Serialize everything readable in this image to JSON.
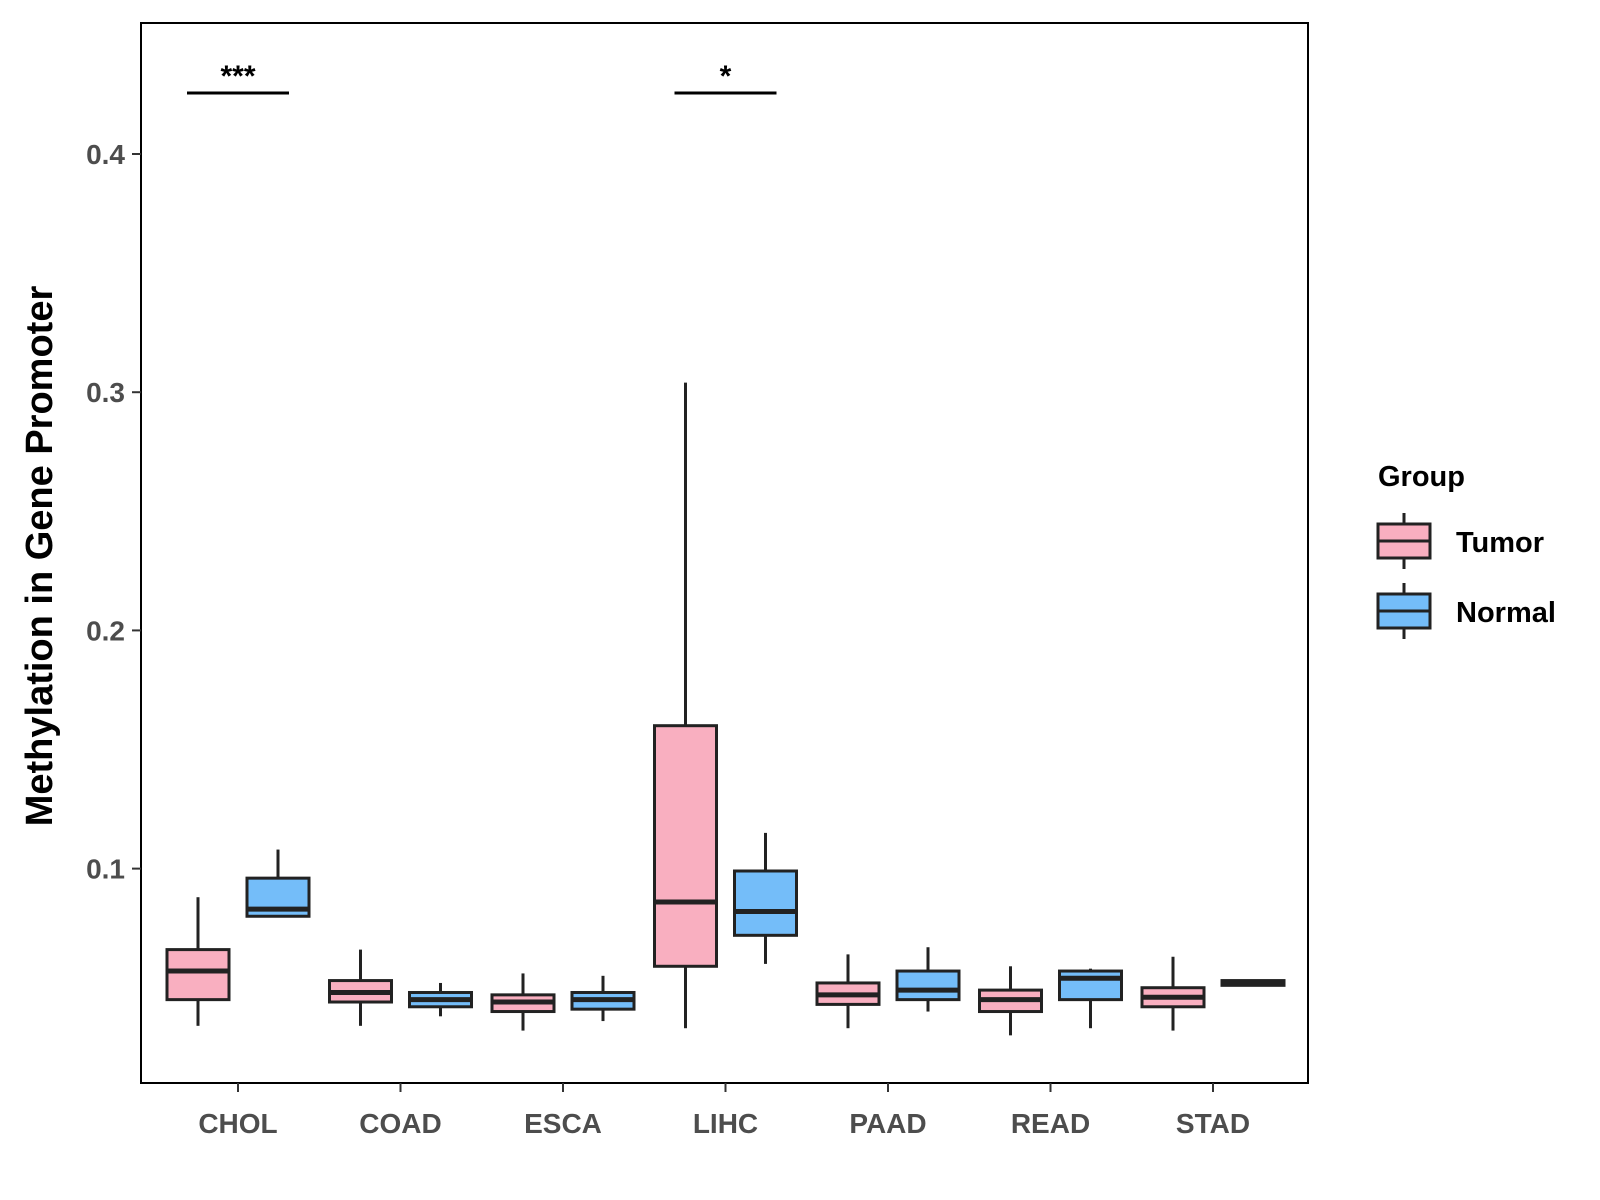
{
  "chart_data": {
    "type": "boxplot",
    "ylabel": "Methylation in Gene Promoter",
    "xlabel": "",
    "ylim": [
      0.01,
      0.455
    ],
    "yticks": [
      "0.1",
      "0.2",
      "0.3",
      "0.4"
    ],
    "ytick_values": [
      0.1,
      0.2,
      0.3,
      0.4
    ],
    "categories": [
      "CHOL",
      "COAD",
      "ESCA",
      "LIHC",
      "PAAD",
      "READ",
      "STAD"
    ],
    "legend": {
      "title": "Group",
      "entries": [
        {
          "name": "Tumor",
          "color": "#f9afc0"
        },
        {
          "name": "Normal",
          "color": "#74bdf9"
        }
      ]
    },
    "series": [
      {
        "name": "Tumor",
        "color": "#f9afc0",
        "boxes": [
          {
            "category": "CHOL",
            "min": 0.034,
            "q1": 0.045,
            "median": 0.057,
            "q3": 0.066,
            "max": 0.088
          },
          {
            "category": "COAD",
            "min": 0.034,
            "q1": 0.044,
            "median": 0.048,
            "q3": 0.053,
            "max": 0.066
          },
          {
            "category": "ESCA",
            "min": 0.032,
            "q1": 0.04,
            "median": 0.044,
            "q3": 0.047,
            "max": 0.056
          },
          {
            "category": "LIHC",
            "min": 0.033,
            "q1": 0.059,
            "median": 0.086,
            "q3": 0.16,
            "max": 0.304
          },
          {
            "category": "PAAD",
            "min": 0.033,
            "q1": 0.043,
            "median": 0.047,
            "q3": 0.052,
            "max": 0.064
          },
          {
            "category": "READ",
            "min": 0.03,
            "q1": 0.04,
            "median": 0.045,
            "q3": 0.049,
            "max": 0.059
          },
          {
            "category": "STAD",
            "min": 0.032,
            "q1": 0.042,
            "median": 0.046,
            "q3": 0.05,
            "max": 0.063
          }
        ]
      },
      {
        "name": "Normal",
        "color": "#74bdf9",
        "boxes": [
          {
            "category": "CHOL",
            "min": 0.08,
            "q1": 0.08,
            "median": 0.083,
            "q3": 0.096,
            "max": 0.108
          },
          {
            "category": "COAD",
            "min": 0.038,
            "q1": 0.042,
            "median": 0.045,
            "q3": 0.048,
            "max": 0.052
          },
          {
            "category": "ESCA",
            "min": 0.036,
            "q1": 0.041,
            "median": 0.045,
            "q3": 0.048,
            "max": 0.055
          },
          {
            "category": "LIHC",
            "min": 0.06,
            "q1": 0.072,
            "median": 0.082,
            "q3": 0.099,
            "max": 0.115
          },
          {
            "category": "PAAD",
            "min": 0.04,
            "q1": 0.045,
            "median": 0.049,
            "q3": 0.057,
            "max": 0.067
          },
          {
            "category": "READ",
            "min": 0.033,
            "q1": 0.045,
            "median": 0.054,
            "q3": 0.057,
            "max": 0.058
          },
          {
            "category": "STAD",
            "min": 0.051,
            "q1": 0.051,
            "median": 0.052,
            "q3": 0.053,
            "max": 0.053
          }
        ]
      }
    ],
    "significance": [
      {
        "category": "CHOL",
        "label": "***"
      },
      {
        "category": "LIHC",
        "label": "*"
      }
    ]
  }
}
